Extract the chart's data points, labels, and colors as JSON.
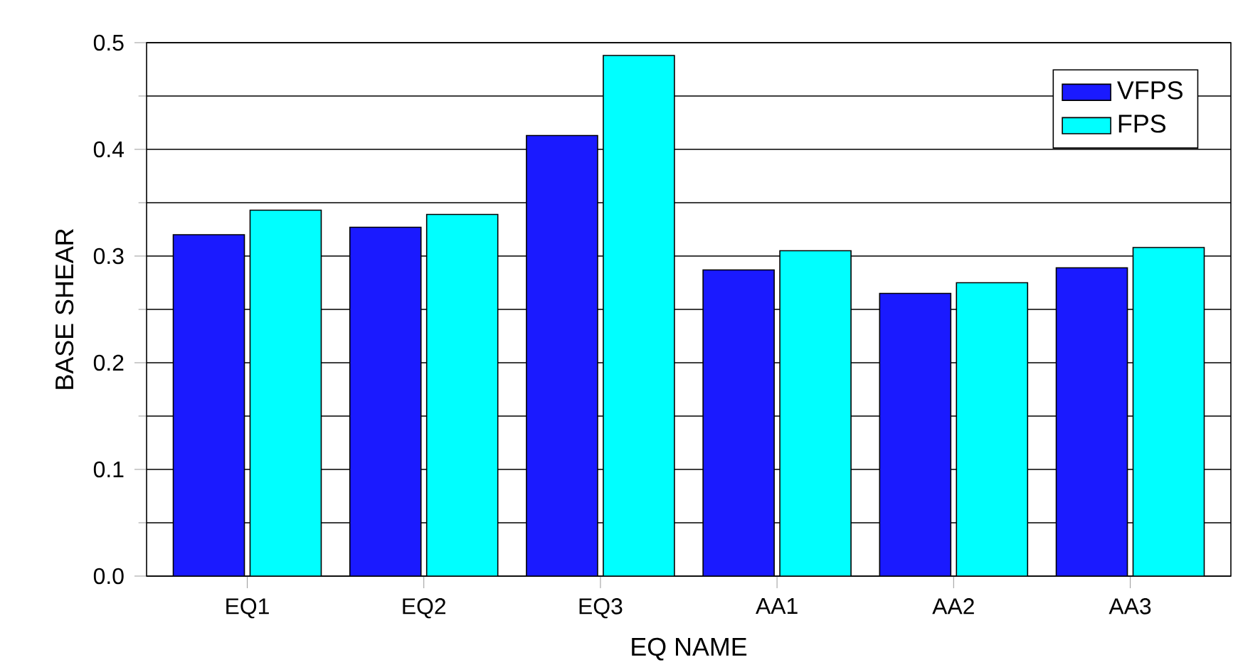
{
  "chart_data": {
    "type": "bar",
    "xlabel": "EQ NAME",
    "ylabel": "BASE SHEAR",
    "categories": [
      "EQ1",
      "EQ2",
      "EQ3",
      "AA1",
      "AA2",
      "AA3"
    ],
    "series": [
      {
        "name": "VFPS",
        "color": "#1a1aff",
        "values": [
          0.32,
          0.327,
          0.413,
          0.287,
          0.265,
          0.289
        ]
      },
      {
        "name": "FPS",
        "color": "#00ffff",
        "values": [
          0.343,
          0.339,
          0.488,
          0.305,
          0.275,
          0.308
        ]
      }
    ],
    "ylim": [
      0,
      0.5
    ],
    "yticks": [
      {
        "value": 0,
        "label": "0.0"
      },
      0.1,
      0.2,
      0.3,
      0.4,
      0.5
    ],
    "grid": true,
    "legend": "top right"
  }
}
